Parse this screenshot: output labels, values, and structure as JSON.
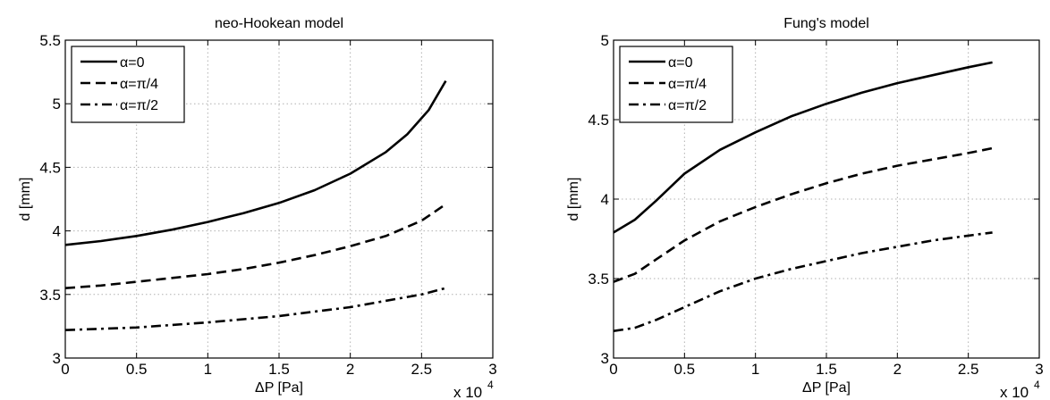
{
  "chart_data": [
    {
      "type": "line",
      "title": "neo-Hookean model",
      "xlabel": "ΔP [Pa]",
      "ylabel": "d [mm]",
      "x_multiplier": "x 10",
      "x_multiplier_exp": "4",
      "xlim": [
        0,
        3
      ],
      "ylim": [
        3,
        5.5
      ],
      "xticks": [
        0,
        0.5,
        1,
        1.5,
        2,
        2.5,
        3
      ],
      "yticks": [
        3,
        3.5,
        4,
        4.5,
        5,
        5.5
      ],
      "xtick_labels": [
        "0",
        "0.5",
        "1",
        "1.5",
        "2",
        "2.5",
        "3"
      ],
      "ytick_labels": [
        "3",
        "3.5",
        "4",
        "4.5",
        "5",
        "5.5"
      ],
      "grid": true,
      "legend_position": "top-left",
      "series": [
        {
          "name": "α=0",
          "dash": "solid",
          "x": [
            0,
            0.25,
            0.5,
            0.75,
            1.0,
            1.25,
            1.5,
            1.75,
            2.0,
            2.25,
            2.4,
            2.55,
            2.67
          ],
          "y": [
            3.89,
            3.92,
            3.96,
            4.01,
            4.07,
            4.14,
            4.22,
            4.32,
            4.45,
            4.62,
            4.76,
            4.95,
            5.18
          ]
        },
        {
          "name": "α=π/4",
          "dash": "dashed",
          "x": [
            0,
            0.25,
            0.5,
            0.75,
            1.0,
            1.25,
            1.5,
            1.75,
            2.0,
            2.25,
            2.5,
            2.67
          ],
          "y": [
            3.55,
            3.57,
            3.6,
            3.63,
            3.66,
            3.7,
            3.75,
            3.81,
            3.88,
            3.96,
            4.08,
            4.21
          ]
        },
        {
          "name": "α=π/2",
          "dash": "dashdot",
          "x": [
            0,
            0.5,
            1.0,
            1.5,
            2.0,
            2.5,
            2.67
          ],
          "y": [
            3.22,
            3.24,
            3.28,
            3.33,
            3.4,
            3.5,
            3.55
          ]
        }
      ]
    },
    {
      "type": "line",
      "title": "Fung's model",
      "xlabel": "ΔP [Pa]",
      "ylabel": "d [mm]",
      "x_multiplier": "x 10",
      "x_multiplier_exp": "4",
      "xlim": [
        0,
        3
      ],
      "ylim": [
        3,
        5
      ],
      "xticks": [
        0,
        0.5,
        1,
        1.5,
        2,
        2.5,
        3
      ],
      "yticks": [
        3,
        3.5,
        4,
        4.5,
        5
      ],
      "xtick_labels": [
        "0",
        "0.5",
        "1",
        "1.5",
        "2",
        "2.5",
        "3"
      ],
      "ytick_labels": [
        "3",
        "3.5",
        "4",
        "4.5",
        "5"
      ],
      "grid": true,
      "legend_position": "top-left",
      "series": [
        {
          "name": "α=0",
          "dash": "solid",
          "x": [
            0,
            0.15,
            0.3,
            0.5,
            0.75,
            1.0,
            1.25,
            1.5,
            1.75,
            2.0,
            2.25,
            2.5,
            2.67
          ],
          "y": [
            3.79,
            3.87,
            3.99,
            4.16,
            4.31,
            4.42,
            4.52,
            4.6,
            4.67,
            4.73,
            4.78,
            4.83,
            4.86
          ]
        },
        {
          "name": "α=π/4",
          "dash": "dashed",
          "x": [
            0,
            0.15,
            0.3,
            0.5,
            0.75,
            1.0,
            1.25,
            1.5,
            1.75,
            2.0,
            2.25,
            2.5,
            2.67
          ],
          "y": [
            3.48,
            3.53,
            3.62,
            3.74,
            3.86,
            3.95,
            4.03,
            4.1,
            4.16,
            4.21,
            4.25,
            4.29,
            4.32
          ]
        },
        {
          "name": "α=π/2",
          "dash": "dashdot",
          "x": [
            0,
            0.15,
            0.3,
            0.5,
            0.75,
            1.0,
            1.25,
            1.5,
            1.75,
            2.0,
            2.25,
            2.5,
            2.67
          ],
          "y": [
            3.17,
            3.19,
            3.24,
            3.32,
            3.42,
            3.5,
            3.56,
            3.61,
            3.66,
            3.7,
            3.74,
            3.77,
            3.79
          ]
        }
      ]
    }
  ]
}
